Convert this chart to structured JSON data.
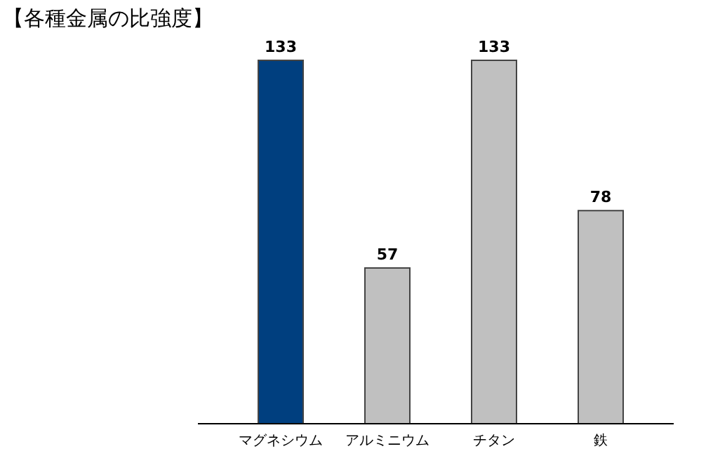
{
  "chart_data": {
    "type": "bar",
    "title": "【各種金属の比強度】",
    "categories": [
      "マグネシウム",
      "アルミニウム",
      "チタン",
      "鉄"
    ],
    "values": [
      133,
      57,
      133,
      78
    ],
    "colors": [
      "#003f7f",
      "#c0c0c0",
      "#c0c0c0",
      "#c0c0c0"
    ],
    "data_labels": true
  }
}
